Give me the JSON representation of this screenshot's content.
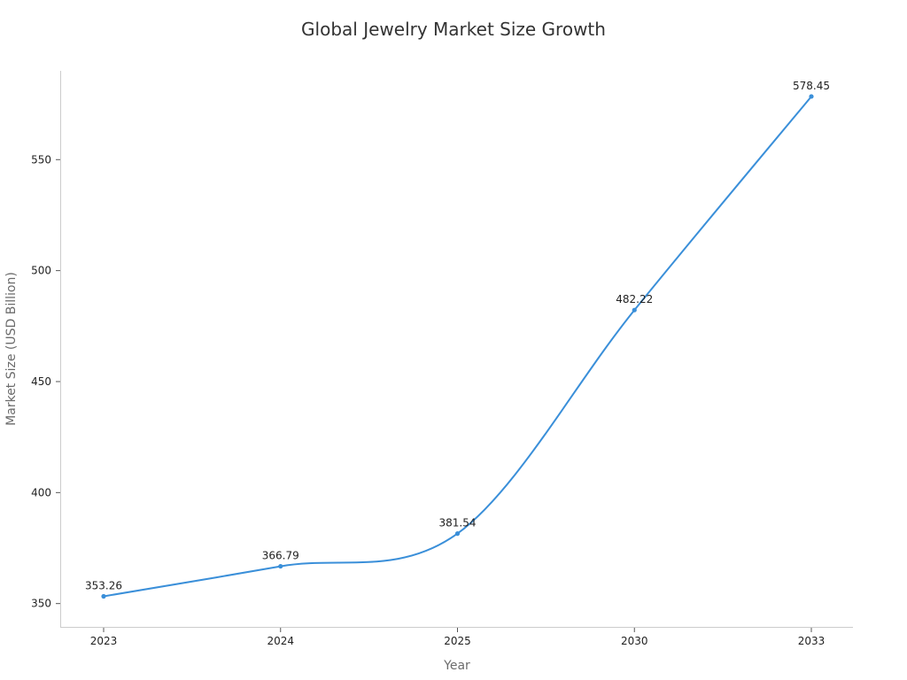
{
  "chart_data": {
    "type": "line",
    "title": "Global Jewelry Market Size Growth",
    "xlabel": "Year",
    "ylabel": "Market Size (USD Billion)",
    "categories": [
      "2023",
      "2024",
      "2025",
      "2030",
      "2033"
    ],
    "series": [
      {
        "values": [
          353.26,
          366.79,
          381.54,
          482.22,
          578.45
        ],
        "color": "#3a8fd9"
      }
    ],
    "data_labels": [
      "353.26",
      "366.79",
      "381.54",
      "482.22",
      "578.45"
    ],
    "yticks": [
      350,
      400,
      450,
      500,
      550
    ],
    "ylim": [
      339.5,
      590
    ],
    "grid": false,
    "legend": "none",
    "line_style": "smooth"
  }
}
